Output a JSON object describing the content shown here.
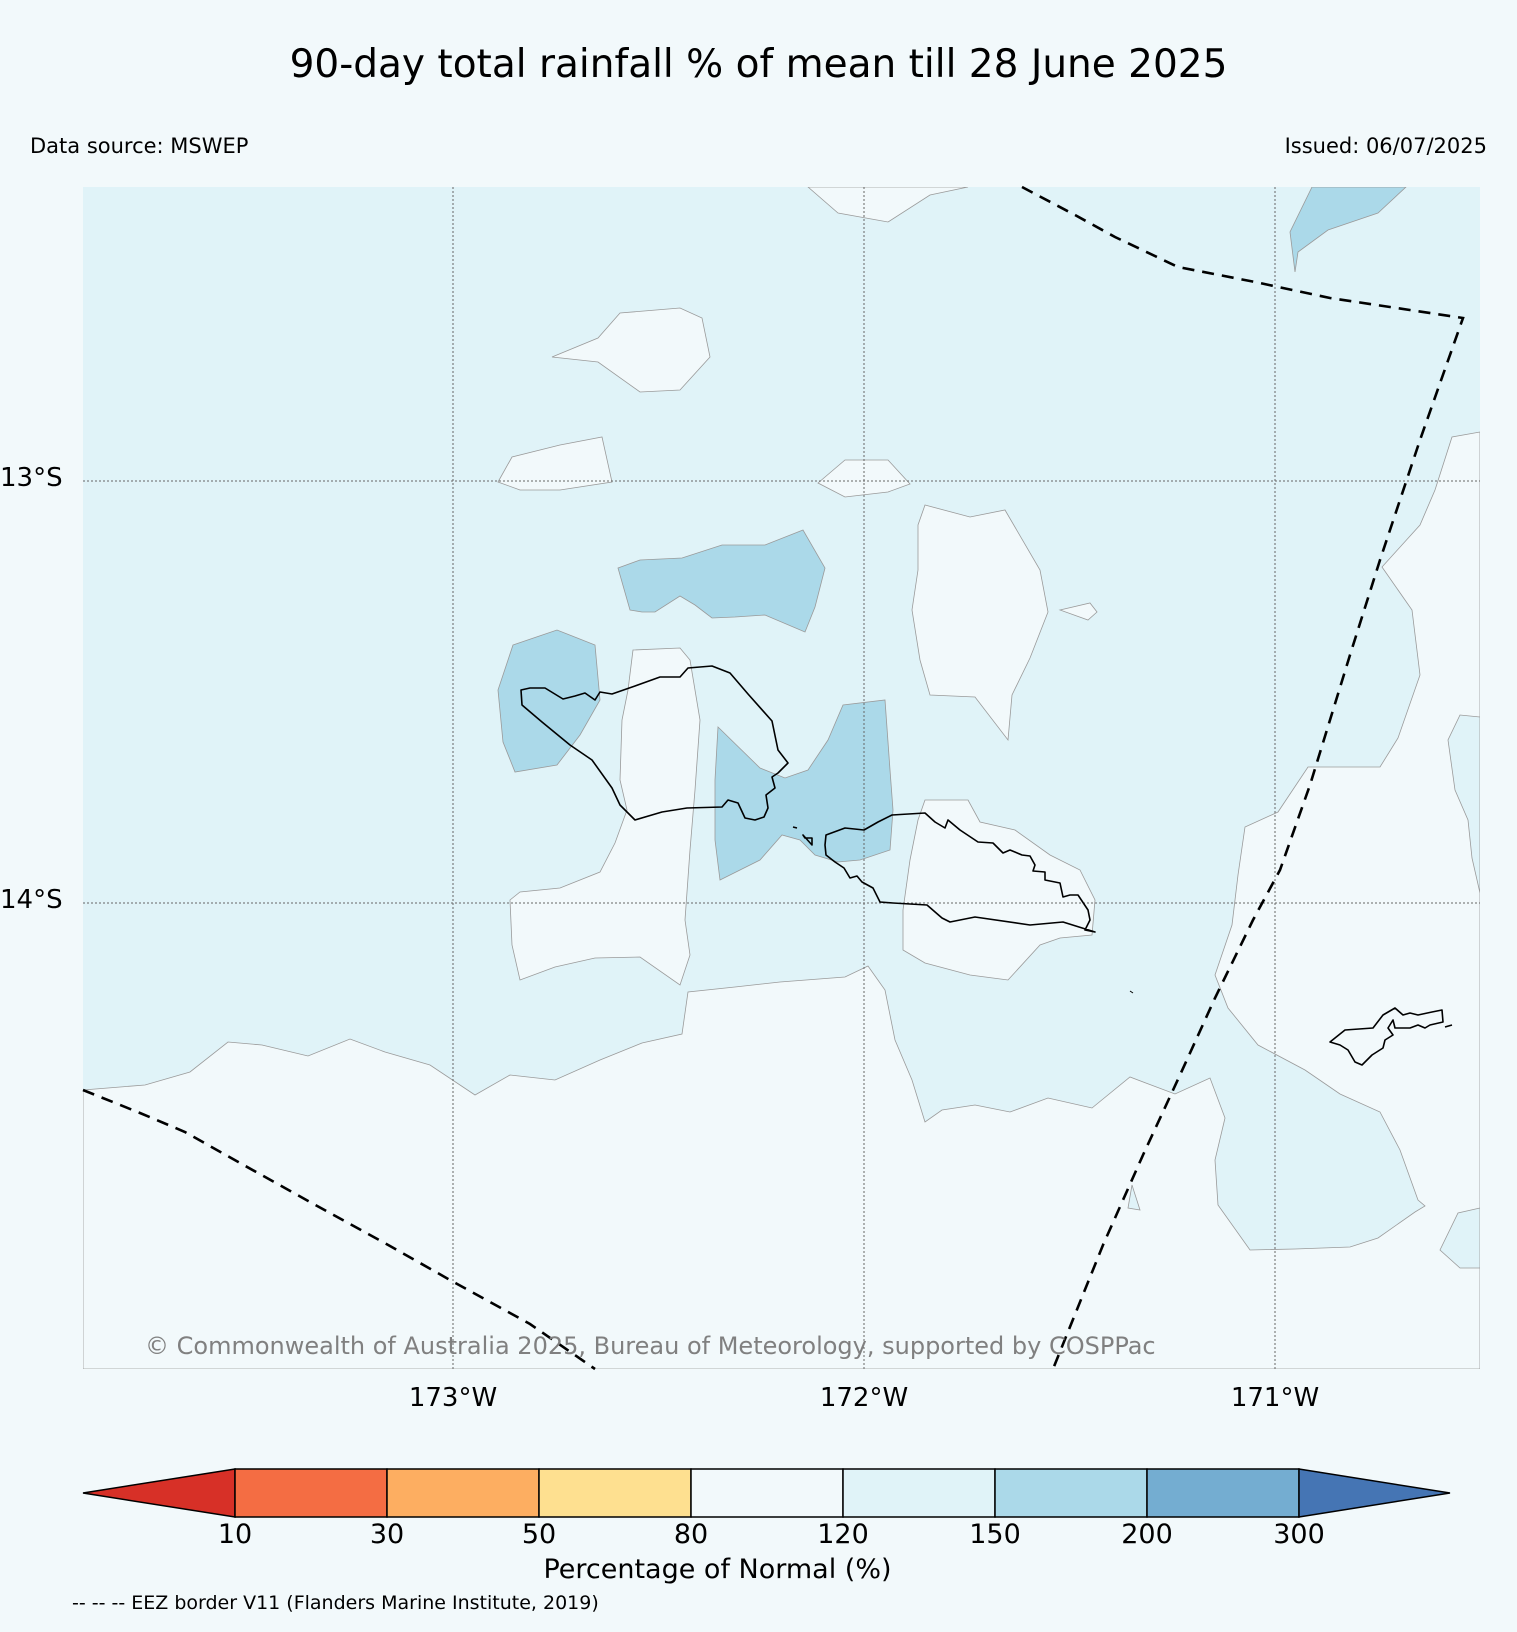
{
  "title": "90-day total rainfall % of mean till 28 June 2025",
  "data_source": "Data source: MSWEP",
  "issued": "Issued: 06/07/2025",
  "copyright": "© Commonwealth of Australia 2025, Bureau of Meteorology, supported by COSPPac",
  "latitudes": [
    "13°S",
    "14°S"
  ],
  "longitudes": [
    "173°W",
    "172°W",
    "171°W"
  ],
  "colorbar": {
    "label": "Percentage of Normal (%)",
    "ticks": [
      "10",
      "30",
      "50",
      "80",
      "120",
      "150",
      "200",
      "300"
    ],
    "colors": [
      "#d73027",
      "#f46d43",
      "#fdae61",
      "#fee090",
      "#f2f9fb",
      "#e0f3f8",
      "#abd9e9",
      "#74add1",
      "#4575b4"
    ]
  },
  "legend_note": "-- -- -- EEZ border V11 (Flanders Marine Institute, 2019)",
  "map_colors": {
    "background": "#f2f9fb",
    "class_80_120": "#f2f9fb",
    "class_120_150": "#e0f3f8",
    "class_150_200": "#abd9e9"
  }
}
